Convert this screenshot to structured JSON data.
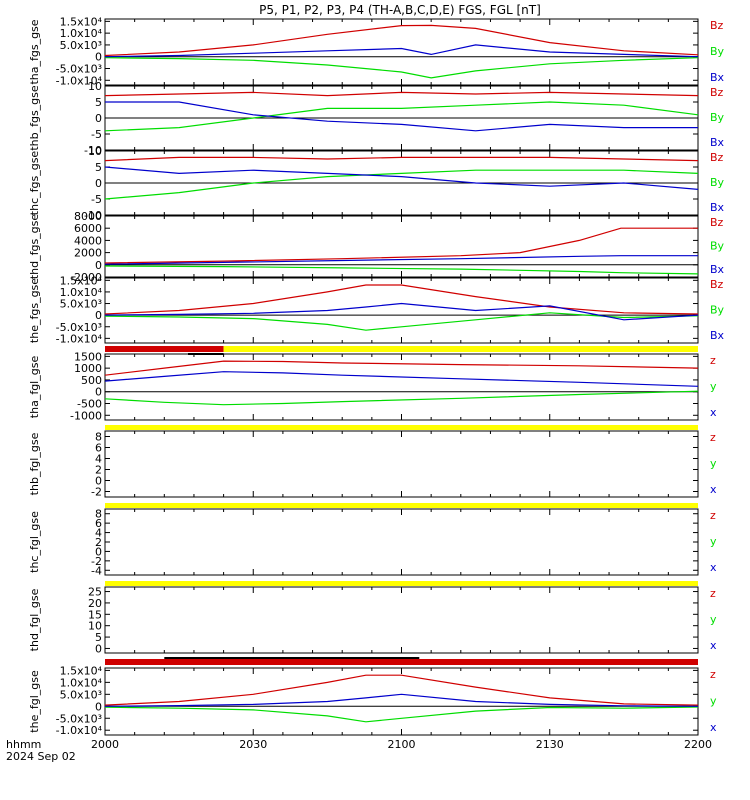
{
  "title": "P5, P1, P2, P3, P4 (TH-A,B,C,D,E) FGS, FGL [nT]",
  "x_axis": {
    "tick_labels": [
      "2000",
      "2030",
      "2100",
      "2130",
      "2200"
    ],
    "caption_1": "hhmm",
    "caption_2": "2024 Sep 02"
  },
  "colors": {
    "red": "#d00000",
    "green": "#00dd00",
    "blue": "#0000cc",
    "yellow": "#ffff00",
    "black": "#000000"
  },
  "chart_data": [
    {
      "type": "line",
      "ylabel": "tha_fgs_gse",
      "ylim": [
        -12000,
        16000
      ],
      "y_ticks": [
        15000,
        10000,
        5000,
        0,
        -5000,
        -10000
      ],
      "y_tick_labels": [
        "1.5x10⁴",
        "1.0x10⁴",
        "5.0x10³",
        "0",
        "-5.0x10³",
        "-1.0x10⁴"
      ],
      "legend": [
        "Bz",
        "By",
        "Bx"
      ],
      "x": [
        0,
        0.125,
        0.25,
        0.375,
        0.5,
        0.55,
        0.625,
        0.75,
        0.875,
        1.0
      ],
      "series": [
        {
          "name": "Bz",
          "color": "red",
          "values": [
            500,
            2000,
            5000,
            9500,
            13200,
            13300,
            12000,
            6000,
            2500,
            800
          ]
        },
        {
          "name": "By",
          "color": "green",
          "values": [
            -400,
            -800,
            -1500,
            -3500,
            -6500,
            -9000,
            -6000,
            -3000,
            -1500,
            -400
          ]
        },
        {
          "name": "Bx",
          "color": "blue",
          "values": [
            0,
            500,
            1500,
            2500,
            3500,
            1000,
            5000,
            2000,
            1000,
            0
          ]
        }
      ]
    },
    {
      "type": "line",
      "ylabel": "thb_fgs_gse",
      "ylim": [
        -10,
        10
      ],
      "y_ticks": [
        10,
        5,
        0,
        -5,
        -10
      ],
      "y_tick_labels": [
        "10",
        "5",
        "0",
        "-5",
        "-10"
      ],
      "legend": [
        "Bz",
        "By",
        "Bx"
      ],
      "x": [
        0,
        0.125,
        0.25,
        0.375,
        0.5,
        0.625,
        0.75,
        0.875,
        1.0
      ],
      "series": [
        {
          "name": "Bz",
          "color": "red",
          "values": [
            7,
            7.5,
            8,
            7,
            8,
            7.5,
            8,
            7.5,
            7
          ]
        },
        {
          "name": "By",
          "color": "green",
          "values": [
            -4,
            -3,
            0,
            3,
            3,
            4,
            5,
            4,
            1
          ]
        },
        {
          "name": "Bx",
          "color": "blue",
          "values": [
            5,
            5,
            1,
            -1,
            -2,
            -4,
            -2,
            -3,
            -3
          ]
        }
      ]
    },
    {
      "type": "line",
      "ylabel": "thc_fgs_gse",
      "ylim": [
        -10,
        10
      ],
      "y_ticks": [
        10,
        5,
        0,
        -5,
        -10
      ],
      "y_tick_labels": [
        "10",
        "5",
        "0",
        "-5",
        "-10"
      ],
      "legend": [
        "Bz",
        "By",
        "Bx"
      ],
      "x": [
        0,
        0.125,
        0.25,
        0.375,
        0.5,
        0.625,
        0.75,
        0.875,
        1.0
      ],
      "series": [
        {
          "name": "Bz",
          "color": "red",
          "values": [
            7,
            8,
            8,
            7.5,
            8,
            8,
            8,
            7.5,
            7
          ]
        },
        {
          "name": "By",
          "color": "green",
          "values": [
            -5,
            -3,
            0,
            2,
            3,
            4,
            4,
            4,
            3
          ]
        },
        {
          "name": "Bx",
          "color": "blue",
          "values": [
            5,
            3,
            4,
            3,
            2,
            0,
            -1,
            0,
            -2
          ]
        }
      ]
    },
    {
      "type": "line",
      "ylabel": "thd_fgs_gse",
      "ylim": [
        -2000,
        8000
      ],
      "y_ticks": [
        8000,
        6000,
        4000,
        2000,
        0,
        -2000
      ],
      "y_tick_labels": [
        "8000",
        "6000",
        "4000",
        "2000",
        "0",
        "-2000"
      ],
      "legend": [
        "Bz",
        "By",
        "Bx"
      ],
      "x": [
        0,
        0.2,
        0.4,
        0.6,
        0.7,
        0.8,
        0.87,
        1.0
      ],
      "series": [
        {
          "name": "Bz",
          "color": "red",
          "values": [
            300,
            600,
            1000,
            1500,
            2000,
            4000,
            6000,
            6000
          ]
        },
        {
          "name": "By",
          "color": "green",
          "values": [
            -200,
            -300,
            -500,
            -700,
            -900,
            -1100,
            -1300,
            -1500
          ]
        },
        {
          "name": "Bx",
          "color": "blue",
          "values": [
            100,
            400,
            700,
            1000,
            1200,
            1400,
            1500,
            1500
          ]
        }
      ]
    },
    {
      "type": "line",
      "ylabel": "the_fgs_gse",
      "ylim": [
        -12000,
        16000
      ],
      "y_ticks": [
        15000,
        10000,
        5000,
        0,
        -5000,
        -10000
      ],
      "y_tick_labels": [
        "1.5x10⁴",
        "1.0x10⁴",
        "5.0x10³",
        "0",
        "-5.0x10³",
        "-1.0x10⁴"
      ],
      "legend": [
        "Bz",
        "By",
        "Bx"
      ],
      "x": [
        0,
        0.125,
        0.25,
        0.375,
        0.44,
        0.5,
        0.625,
        0.75,
        0.875,
        1.0
      ],
      "series": [
        {
          "name": "Bz",
          "color": "red",
          "values": [
            500,
            2000,
            5000,
            10000,
            13000,
            13000,
            8000,
            3500,
            1000,
            500
          ]
        },
        {
          "name": "By",
          "color": "green",
          "values": [
            -400,
            -800,
            -1500,
            -4000,
            -6500,
            -5000,
            -2000,
            1000,
            -1000,
            -300
          ]
        },
        {
          "name": "Bx",
          "color": "blue",
          "values": [
            0,
            300,
            800,
            2000,
            3500,
            5000,
            2000,
            4000,
            -2000,
            0
          ]
        }
      ]
    },
    {
      "type": "line",
      "ylabel": "tha_fgl_gse",
      "ylim": [
        -1200,
        1600
      ],
      "y_ticks": [
        1500,
        1000,
        500,
        0,
        -500,
        -1000
      ],
      "y_tick_labels": [
        "1500",
        "1000",
        "500",
        "0",
        "-500",
        "-1000"
      ],
      "legend": [
        "z",
        "y",
        "x"
      ],
      "x": [
        0,
        0.1,
        0.2,
        0.3,
        0.4,
        0.6,
        0.8,
        1.0
      ],
      "series": [
        {
          "name": "z",
          "color": "red",
          "values": [
            700,
            1000,
            1300,
            1280,
            1220,
            1150,
            1100,
            1000
          ]
        },
        {
          "name": "y",
          "color": "green",
          "values": [
            -300,
            -450,
            -550,
            -500,
            -420,
            -280,
            -120,
            20
          ]
        },
        {
          "name": "x",
          "color": "blue",
          "values": [
            450,
            650,
            850,
            800,
            700,
            550,
            400,
            230
          ]
        }
      ]
    },
    {
      "type": "line",
      "ylabel": "thb_fgl_gse",
      "ylim": [
        -3,
        9
      ],
      "y_ticks": [
        8,
        6,
        4,
        2,
        0,
        -2
      ],
      "y_tick_labels": [
        "8",
        "6",
        "4",
        "2",
        "0",
        "-2"
      ],
      "legend": [
        "z",
        "y",
        "x"
      ],
      "x": [],
      "series": []
    },
    {
      "type": "line",
      "ylabel": "thc_fgl_gse",
      "ylim": [
        -5,
        9
      ],
      "y_ticks": [
        8,
        6,
        4,
        2,
        0,
        -2,
        -4
      ],
      "y_tick_labels": [
        "8",
        "6",
        "4",
        "2",
        "0",
        "-2",
        "-4"
      ],
      "legend": [
        "z",
        "y",
        "x"
      ],
      "x": [],
      "series": []
    },
    {
      "type": "line",
      "ylabel": "thd_fgl_gse",
      "ylim": [
        -2,
        27
      ],
      "y_ticks": [
        25,
        20,
        15,
        10,
        5,
        0
      ],
      "y_tick_labels": [
        "25",
        "20",
        "15",
        "10",
        "5",
        "0"
      ],
      "legend": [
        "z",
        "y",
        "x"
      ],
      "x": [],
      "series": []
    },
    {
      "type": "line",
      "ylabel": "the_fgl_gse",
      "ylim": [
        -12000,
        16000
      ],
      "y_ticks": [
        15000,
        10000,
        5000,
        0,
        -5000,
        -10000
      ],
      "y_tick_labels": [
        "1.5x10⁴",
        "1.0x10⁴",
        "5.0x10³",
        "0",
        "-5.0x10³",
        "-1.0x10⁴"
      ],
      "legend": [
        "z",
        "y",
        "x"
      ],
      "x": [
        0,
        0.125,
        0.25,
        0.375,
        0.44,
        0.5,
        0.625,
        0.75,
        0.875,
        1.0
      ],
      "series": [
        {
          "name": "z",
          "color": "red",
          "values": [
            500,
            2000,
            5000,
            10000,
            13000,
            13000,
            8000,
            3500,
            1000,
            500
          ]
        },
        {
          "name": "y",
          "color": "green",
          "values": [
            -400,
            -800,
            -1500,
            -4000,
            -6500,
            -5000,
            -2000,
            -500,
            -800,
            -300
          ]
        },
        {
          "name": "x",
          "color": "blue",
          "values": [
            0,
            300,
            800,
            2000,
            3500,
            5000,
            2000,
            800,
            200,
            0
          ]
        }
      ]
    }
  ],
  "status_bars": [
    {
      "after_panel": 4,
      "segments": [
        {
          "color": "red",
          "from": 0,
          "to": 0.2
        },
        {
          "color": "yellow",
          "from": 0.2,
          "to": 1.0
        }
      ],
      "marker": {
        "from": 0.14,
        "to": 0.2
      }
    },
    {
      "after_panel": 5,
      "segments": [
        {
          "color": "yellow",
          "from": 0,
          "to": 1.0
        }
      ]
    },
    {
      "after_panel": 6,
      "segments": [
        {
          "color": "yellow",
          "from": 0,
          "to": 1.0
        }
      ]
    },
    {
      "after_panel": 7,
      "segments": [
        {
          "color": "yellow",
          "from": 0,
          "to": 1.0
        }
      ]
    },
    {
      "after_panel": 8,
      "segments": [
        {
          "color": "red",
          "from": 0,
          "to": 1.0
        }
      ],
      "marker": {
        "from": 0.1,
        "to": 0.53
      }
    }
  ]
}
